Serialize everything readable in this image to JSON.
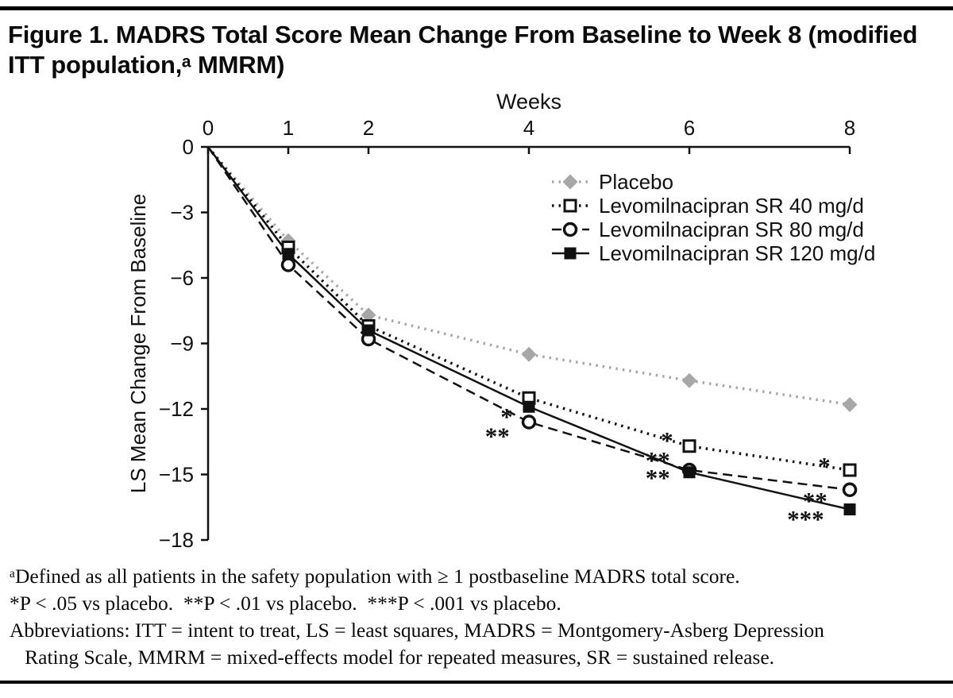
{
  "figure": {
    "title": "Figure 1. MADRS Total Score Mean Change From Baseline to Week 8 (modified ITT population,ᵃ MMRM)",
    "footnotes": [
      "ᵃDefined as all patients in the safety population with ≥ 1 postbaseline MADRS total score.",
      "*P < .05 vs placebo.  **P < .01 vs placebo.  ***P < .001 vs placebo.",
      "Abbreviations: ITT = intent to treat, LS = least squares, MADRS = Montgomery-Asberg Depression",
      "   Rating Scale, MMRM = mixed-effects model for repeated measures, SR = sustained release."
    ]
  },
  "chart_data": {
    "type": "line",
    "x_axis_label": "Weeks",
    "y_axis_label": "LS Mean Change From Baseline",
    "x": [
      0,
      1,
      2,
      4,
      6,
      8
    ],
    "x_ticks": [
      0,
      1,
      2,
      4,
      6,
      8
    ],
    "y_ticks": [
      0,
      -3,
      -6,
      -9,
      -12,
      -15,
      -18
    ],
    "xlim": [
      0,
      8
    ],
    "ylim": [
      0,
      -18
    ],
    "grid": false,
    "legend_position": "top-right-inside",
    "series": [
      {
        "name": "Placebo",
        "marker": "diamond-filled",
        "color": "#a7a7a7",
        "line": "dotted",
        "values": [
          0,
          -4.3,
          -7.7,
          -9.5,
          -10.7,
          -11.8
        ]
      },
      {
        "name": "Levomilnacipran SR 40 mg/d",
        "marker": "square-open",
        "color": "#111111",
        "line": "dotted",
        "values": [
          0,
          -4.6,
          -8.2,
          -11.5,
          -13.7,
          -14.8
        ]
      },
      {
        "name": "Levomilnacipran SR 80 mg/d",
        "marker": "circle-open",
        "color": "#111111",
        "line": "dashed",
        "values": [
          0,
          -5.4,
          -8.8,
          -12.6,
          -14.8,
          -15.7
        ]
      },
      {
        "name": "Levomilnacipran SR 120 mg/d",
        "marker": "square-filled",
        "color": "#111111",
        "line": "solid",
        "values": [
          0,
          -4.9,
          -8.4,
          -11.9,
          -14.9,
          -16.6
        ]
      }
    ],
    "annotations": [
      {
        "x": 3.8,
        "y": -12.25,
        "text": "*"
      },
      {
        "x": 3.76,
        "y": -13.15,
        "text": "**"
      },
      {
        "x": 5.8,
        "y": -13.35,
        "text": "*"
      },
      {
        "x": 5.76,
        "y": -14.25,
        "text": "**"
      },
      {
        "x": 5.76,
        "y": -15.05,
        "text": "**"
      },
      {
        "x": 7.76,
        "y": -14.5,
        "text": "*"
      },
      {
        "x": 7.72,
        "y": -16.1,
        "text": "**"
      },
      {
        "x": 7.68,
        "y": -16.95,
        "text": "***"
      }
    ]
  }
}
